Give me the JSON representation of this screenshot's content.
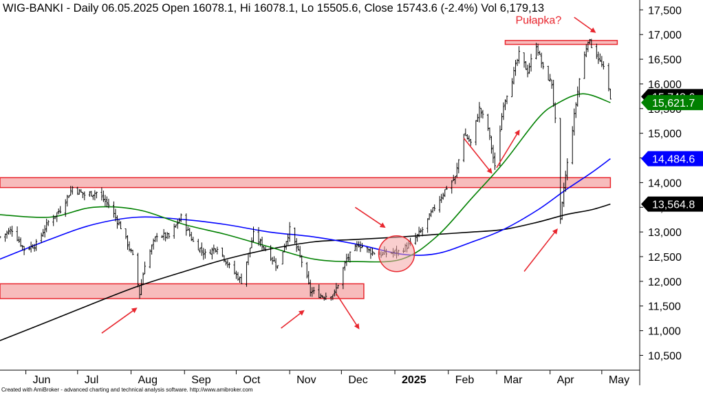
{
  "chart_data": {
    "type": "candlestick",
    "title": "WIG-BANKI - Daily 06.05.2025 Open 16078.1, Hi 16078.1, Lo 15505.6, Close 15743.6 (-2.4%) Vol 6,179,13",
    "footer": "Created with AmiBroker - advanced charting and technical analysis software. http://www.amibroker.com",
    "ylim": [
      10200,
      17700
    ],
    "y_ticks": [
      10500,
      11000,
      11500,
      12000,
      12500,
      13000,
      13500,
      14000,
      14500,
      15000,
      15500,
      16000,
      16500,
      17000,
      17500
    ],
    "y_tick_labels": [
      "10,500",
      "11,000",
      "11,500",
      "12,000",
      "12,500",
      "13,000",
      "13,500",
      "14,000",
      "14,500",
      "15,000",
      "15,500",
      "16,000",
      "16,500",
      "17,000",
      "17,500"
    ],
    "x_ticks": [
      {
        "label": "Jun",
        "date": "2024-06-01"
      },
      {
        "label": "Jul",
        "date": "2024-07-01"
      },
      {
        "label": "Aug",
        "date": "2024-08-01"
      },
      {
        "label": "Sep",
        "date": "2024-09-01"
      },
      {
        "label": "Oct",
        "date": "2024-10-01"
      },
      {
        "label": "Nov",
        "date": "2024-11-01"
      },
      {
        "label": "Dec",
        "date": "2024-12-01"
      },
      {
        "label": "2025",
        "date": "2025-01-01"
      },
      {
        "label": "Feb",
        "date": "2025-02-01"
      },
      {
        "label": "Mar",
        "date": "2025-03-01"
      },
      {
        "label": "Apr",
        "date": "2025-04-01"
      },
      {
        "label": "May",
        "date": "2025-05-01"
      }
    ],
    "x_range": [
      "2024-05-17",
      "2025-05-23"
    ],
    "price_close": [
      [
        "2024-05-17",
        12900
      ],
      [
        "2024-05-24",
        13050
      ],
      [
        "2024-05-31",
        12650
      ],
      [
        "2024-06-07",
        12750
      ],
      [
        "2024-06-14",
        13200
      ],
      [
        "2024-06-21",
        13450
      ],
      [
        "2024-06-28",
        13900
      ],
      [
        "2024-07-05",
        13750
      ],
      [
        "2024-07-12",
        13800
      ],
      [
        "2024-07-19",
        13550
      ],
      [
        "2024-07-26",
        13100
      ],
      [
        "2024-08-02",
        12500
      ],
      [
        "2024-08-06",
        11750
      ],
      [
        "2024-08-09",
        12350
      ],
      [
        "2024-08-16",
        12950
      ],
      [
        "2024-08-23",
        12900
      ],
      [
        "2024-08-30",
        13300
      ],
      [
        "2024-09-06",
        12800
      ],
      [
        "2024-09-13",
        12550
      ],
      [
        "2024-09-20",
        12700
      ],
      [
        "2024-09-27",
        12300
      ],
      [
        "2024-10-04",
        12000
      ],
      [
        "2024-10-11",
        12950
      ],
      [
        "2024-10-18",
        12650
      ],
      [
        "2024-10-25",
        12300
      ],
      [
        "2024-11-01",
        13050
      ],
      [
        "2024-11-08",
        12400
      ],
      [
        "2024-11-13",
        11800
      ],
      [
        "2024-11-20",
        11700
      ],
      [
        "2024-11-27",
        11750
      ],
      [
        "2024-12-04",
        12450
      ],
      [
        "2024-12-11",
        12750
      ],
      [
        "2024-12-18",
        12600
      ],
      [
        "2024-12-24",
        12550
      ],
      [
        "2025-01-03",
        12600
      ],
      [
        "2025-01-10",
        12750
      ],
      [
        "2025-01-17",
        13050
      ],
      [
        "2025-01-24",
        13500
      ],
      [
        "2025-01-31",
        13900
      ],
      [
        "2025-02-05",
        14100
      ],
      [
        "2025-02-10",
        15000
      ],
      [
        "2025-02-14",
        14800
      ],
      [
        "2025-02-19",
        15500
      ],
      [
        "2025-02-24",
        15100
      ],
      [
        "2025-02-28",
        14300
      ],
      [
        "2025-03-05",
        15600
      ],
      [
        "2025-03-10",
        16100
      ],
      [
        "2025-03-14",
        16600
      ],
      [
        "2025-03-19",
        16250
      ],
      [
        "2025-03-24",
        16800
      ],
      [
        "2025-03-28",
        16300
      ],
      [
        "2025-04-02",
        16000
      ],
      [
        "2025-04-04",
        15250
      ],
      [
        "2025-04-07",
        13200
      ],
      [
        "2025-04-09",
        13900
      ],
      [
        "2025-04-14",
        15100
      ],
      [
        "2025-04-18",
        16100
      ],
      [
        "2025-04-23",
        16900
      ],
      [
        "2025-04-28",
        16600
      ],
      [
        "2025-05-02",
        16300
      ],
      [
        "2025-05-06",
        15743.6
      ]
    ],
    "sma_green": [
      [
        "2024-05-17",
        13350
      ],
      [
        "2024-06-15",
        13300
      ],
      [
        "2024-07-10",
        13500
      ],
      [
        "2024-08-05",
        13450
      ],
      [
        "2024-09-01",
        13150
      ],
      [
        "2024-09-25",
        12950
      ],
      [
        "2024-10-20",
        12700
      ],
      [
        "2024-11-15",
        12450
      ],
      [
        "2024-12-10",
        12400
      ],
      [
        "2025-01-05",
        12450
      ],
      [
        "2025-01-25",
        12900
      ],
      [
        "2025-02-15",
        13700
      ],
      [
        "2025-03-05",
        14400
      ],
      [
        "2025-03-25",
        15300
      ],
      [
        "2025-04-05",
        15600
      ],
      [
        "2025-04-20",
        15800
      ],
      [
        "2025-05-06",
        15621.7
      ]
    ],
    "sma_blue": [
      [
        "2024-05-17",
        12450
      ],
      [
        "2024-06-15",
        12850
      ],
      [
        "2024-07-10",
        13150
      ],
      [
        "2024-08-05",
        13300
      ],
      [
        "2024-09-01",
        13250
      ],
      [
        "2024-09-25",
        13150
      ],
      [
        "2024-10-20",
        13000
      ],
      [
        "2024-11-15",
        12900
      ],
      [
        "2024-12-10",
        12750
      ],
      [
        "2025-01-05",
        12550
      ],
      [
        "2025-01-25",
        12560
      ],
      [
        "2025-02-15",
        12800
      ],
      [
        "2025-03-05",
        13050
      ],
      [
        "2025-03-25",
        13450
      ],
      [
        "2025-04-10",
        13850
      ],
      [
        "2025-04-25",
        14200
      ],
      [
        "2025-05-06",
        14484.6
      ]
    ],
    "sma_black": [
      [
        "2024-05-17",
        10800
      ],
      [
        "2024-06-15",
        11200
      ],
      [
        "2024-07-10",
        11550
      ],
      [
        "2024-08-05",
        11900
      ],
      [
        "2024-09-01",
        12200
      ],
      [
        "2024-09-25",
        12450
      ],
      [
        "2024-10-20",
        12650
      ],
      [
        "2024-11-15",
        12800
      ],
      [
        "2024-12-10",
        12850
      ],
      [
        "2025-01-05",
        12900
      ],
      [
        "2025-01-25",
        12950
      ],
      [
        "2025-02-15",
        13000
      ],
      [
        "2025-03-05",
        13050
      ],
      [
        "2025-03-25",
        13200
      ],
      [
        "2025-04-10",
        13350
      ],
      [
        "2025-04-25",
        13450
      ],
      [
        "2025-05-06",
        13564.8
      ]
    ],
    "price_labels": [
      {
        "text": "15,743.6",
        "value": 15743.6,
        "bg": "#000000",
        "fg": "#ffffff"
      },
      {
        "text": "15,621.7",
        "value": 15621.7,
        "bg": "#008000",
        "fg": "#ffffff"
      },
      {
        "text": "14,484.6",
        "value": 14484.6,
        "bg": "#0000ff",
        "fg": "#ffffff"
      },
      {
        "text": "13,564.8",
        "value": 13564.8,
        "bg": "#000000",
        "fg": "#ffffff"
      }
    ],
    "zones": [
      {
        "from": "2024-05-17",
        "to": "2024-12-14",
        "low": 11650,
        "high": 11950
      },
      {
        "from": "2024-05-17",
        "to": "2025-05-06",
        "low": 13900,
        "high": 14100
      },
      {
        "from": "2025-03-06",
        "to": "2025-05-10",
        "low": 16800,
        "high": 16880
      }
    ],
    "circle": {
      "date": "2025-01-02",
      "value": 12560
    },
    "annotation": {
      "text": "Pułapka?",
      "date": "2025-03-12",
      "value": 17300
    },
    "arrows": [
      {
        "from": [
          "2024-07-15",
          10950
        ],
        "to": [
          "2024-08-04",
          11450
        ]
      },
      {
        "from": [
          "2024-10-27",
          11050
        ],
        "to": [
          "2024-11-09",
          11400
        ]
      },
      {
        "from": [
          "2024-11-28",
          11750
        ],
        "to": [
          "2024-12-11",
          11050
        ]
      },
      {
        "from": [
          "2024-12-09",
          13500
        ],
        "to": [
          "2024-12-26",
          13100
        ]
      },
      {
        "from": [
          "2025-02-10",
          14900
        ],
        "to": [
          "2025-02-26",
          14200
        ]
      },
      {
        "from": [
          "2025-03-01",
          14300
        ],
        "to": [
          "2025-03-14",
          15050
        ]
      },
      {
        "from": [
          "2025-03-17",
          12200
        ],
        "to": [
          "2025-04-05",
          13050
        ]
      },
      {
        "from": [
          "2025-04-15",
          17350
        ],
        "to": [
          "2025-04-27",
          17050
        ]
      }
    ],
    "colors": {
      "candles": "#000000",
      "sma_green": "#008000",
      "sma_blue": "#0000ff",
      "sma_black": "#000000",
      "zone_fill": "#f4a6a6",
      "zone_stroke": "#e8262e",
      "arrow": "#e8262e",
      "annotation": "#e8262e"
    }
  }
}
